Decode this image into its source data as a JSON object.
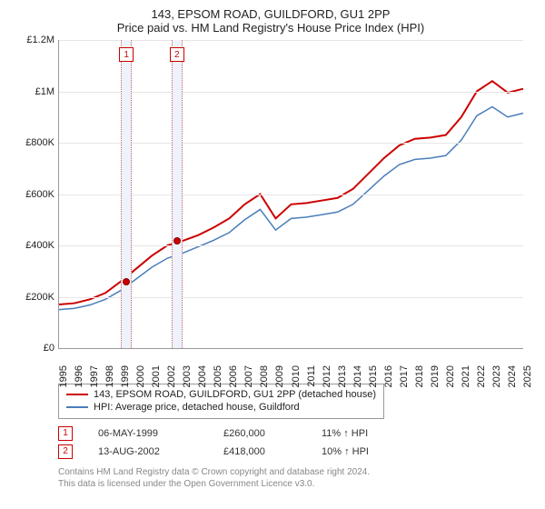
{
  "title": "143, EPSOM ROAD, GUILDFORD, GU1 2PP",
  "subtitle": "Price paid vs. HM Land Registry's House Price Index (HPI)",
  "chart": {
    "type": "line",
    "background_color": "#ffffff",
    "grid_color": "#e6e6e6",
    "ylabel_format": "£{}M",
    "ylim": [
      0,
      1200000
    ],
    "ytick_step": 200000,
    "y_ticks": [
      "£0",
      "£200K",
      "£400K",
      "£600K",
      "£800K",
      "£1M",
      "£1.2M"
    ],
    "x_years": [
      1995,
      1996,
      1997,
      1998,
      1999,
      2000,
      2001,
      2002,
      2003,
      2004,
      2005,
      2006,
      2007,
      2008,
      2009,
      2010,
      2011,
      2012,
      2013,
      2014,
      2015,
      2016,
      2017,
      2018,
      2019,
      2020,
      2021,
      2022,
      2023,
      2024,
      2025
    ],
    "series": [
      {
        "name": "143, EPSOM ROAD, GUILDFORD, GU1 2PP (detached house)",
        "color": "#cc0000",
        "line_width": 2,
        "values": [
          170000,
          175000,
          190000,
          215000,
          260000,
          310000,
          360000,
          400000,
          418000,
          440000,
          470000,
          505000,
          560000,
          600000,
          505000,
          560000,
          565000,
          575000,
          585000,
          620000,
          680000,
          740000,
          790000,
          815000,
          820000,
          830000,
          900000,
          1000000,
          1040000,
          995000,
          1010000
        ]
      },
      {
        "name": "HPI: Average price, detached house, Guildford",
        "color": "#4a7ebb",
        "line_width": 1.5,
        "values": [
          150000,
          155000,
          168000,
          190000,
          225000,
          270000,
          315000,
          350000,
          370000,
          395000,
          420000,
          450000,
          500000,
          540000,
          460000,
          505000,
          510000,
          520000,
          530000,
          560000,
          615000,
          670000,
          715000,
          735000,
          740000,
          750000,
          810000,
          905000,
          940000,
          900000,
          915000
        ]
      }
    ],
    "sales": [
      {
        "idx": "1",
        "year_frac": 1999.35,
        "date": "06-MAY-1999",
        "price": "£260,000",
        "delta": "11% ↑ HPI",
        "y_value": 260000
      },
      {
        "idx": "2",
        "year_frac": 2002.62,
        "date": "13-AUG-2002",
        "price": "£418,000",
        "delta": "10% ↑ HPI",
        "y_value": 418000
      }
    ],
    "sale_band_color": "#eef2fa",
    "sale_marker_border": "#cc0000",
    "sale_dot_fill": "#cc0000"
  },
  "legend": {
    "items": [
      {
        "color": "#cc0000",
        "label": "143, EPSOM ROAD, GUILDFORD, GU1 2PP (detached house)"
      },
      {
        "color": "#4a7ebb",
        "label": "HPI: Average price, detached house, Guildford"
      }
    ]
  },
  "footer": {
    "line1": "Contains HM Land Registry data © Crown copyright and database right 2024.",
    "line2": "This data is licensed under the Open Government Licence v3.0."
  }
}
